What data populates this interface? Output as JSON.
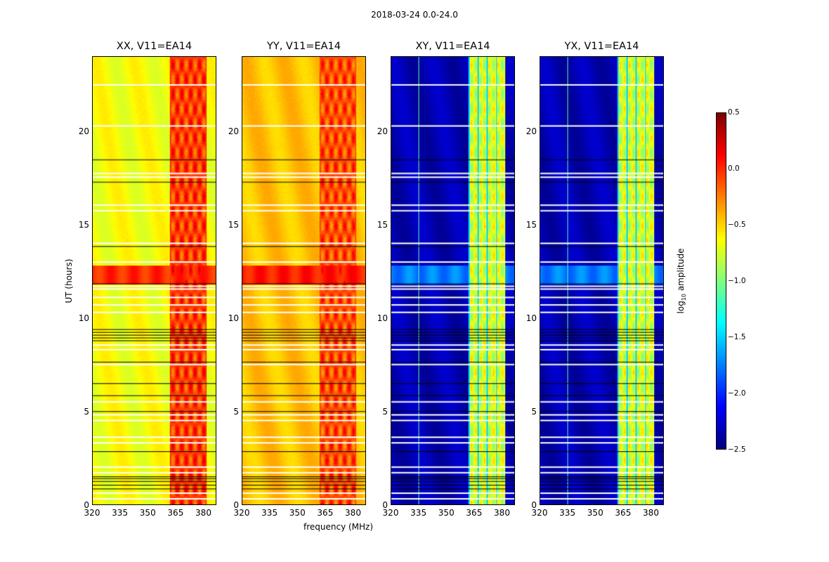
{
  "suptitle": "2018-03-24 0.0-24.0",
  "xlabel": "frequency (MHz)",
  "ylabel": "UT (hours)",
  "colorbar": {
    "label_prefix": "log",
    "label_sub": "10",
    "label_suffix": " amplitude",
    "ticks": [
      "0.5",
      "0.0",
      "−0.5",
      "−1.0",
      "−1.5",
      "−2.0",
      "−2.5"
    ],
    "range": [
      -2.5,
      0.5
    ],
    "colormap": "jet"
  },
  "chart_data": [
    {
      "type": "heatmap",
      "title": "XX, V11=EA14",
      "xlim": [
        320,
        387
      ],
      "ylim": [
        0,
        24
      ],
      "xticks": [
        "320",
        "335",
        "350",
        "365",
        "380"
      ],
      "yticks": [
        "0",
        "5",
        "10",
        "15",
        "20"
      ],
      "background_level": -0.65,
      "band_mhz": [
        362,
        382
      ],
      "band_level": -0.05,
      "bright_hours": [
        11.8,
        12.8
      ],
      "bright_level": 0.0
    },
    {
      "type": "heatmap",
      "title": "YY, V11=EA14",
      "xlim": [
        320,
        387
      ],
      "ylim": [
        0,
        24
      ],
      "xticks": [
        "320",
        "335",
        "350",
        "365",
        "380"
      ],
      "yticks": [
        "0",
        "5",
        "10",
        "15",
        "20"
      ],
      "background_level": -0.45,
      "band_mhz": [
        362,
        382
      ],
      "band_level": -0.1,
      "bright_hours": [
        11.8,
        12.8
      ],
      "bright_level": 0.05
    },
    {
      "type": "heatmap",
      "title": "XY, V11=EA14",
      "xlim": [
        320,
        387
      ],
      "ylim": [
        0,
        24
      ],
      "xticks": [
        "320",
        "335",
        "350",
        "365",
        "380"
      ],
      "yticks": [
        "0",
        "5",
        "10",
        "15",
        "20"
      ],
      "background_level": -2.35,
      "band_mhz": [
        362,
        382
      ],
      "band_level": -0.75,
      "bright_hours": [
        11.8,
        12.8
      ],
      "bright_level": -1.75
    },
    {
      "type": "heatmap",
      "title": "YX, V11=EA14",
      "xlim": [
        320,
        387
      ],
      "ylim": [
        0,
        24
      ],
      "xticks": [
        "320",
        "335",
        "350",
        "365",
        "380"
      ],
      "yticks": [
        "0",
        "5",
        "10",
        "15",
        "20"
      ],
      "background_level": -2.35,
      "band_mhz": [
        362,
        382
      ],
      "band_level": -0.75,
      "bright_hours": [
        11.8,
        12.8
      ],
      "bright_level": -1.75
    }
  ],
  "flagged_hours_white": [
    22.5,
    20.3,
    17.75,
    17.55,
    16.05,
    15.75,
    14.0,
    13.0,
    11.7,
    11.55,
    11.1,
    10.7,
    10.3,
    8.55,
    8.3,
    7.5,
    5.5,
    4.8,
    4.5,
    3.6,
    3.3,
    2.0,
    1.7,
    0.6,
    0.3
  ],
  "flagged_hours_black": [
    18.5,
    17.3,
    13.85,
    11.85,
    9.4,
    9.25,
    9.1,
    8.95,
    8.8,
    7.65,
    6.5,
    5.85,
    5.0,
    2.85,
    1.5,
    1.4,
    1.25,
    1.05,
    0.85
  ]
}
